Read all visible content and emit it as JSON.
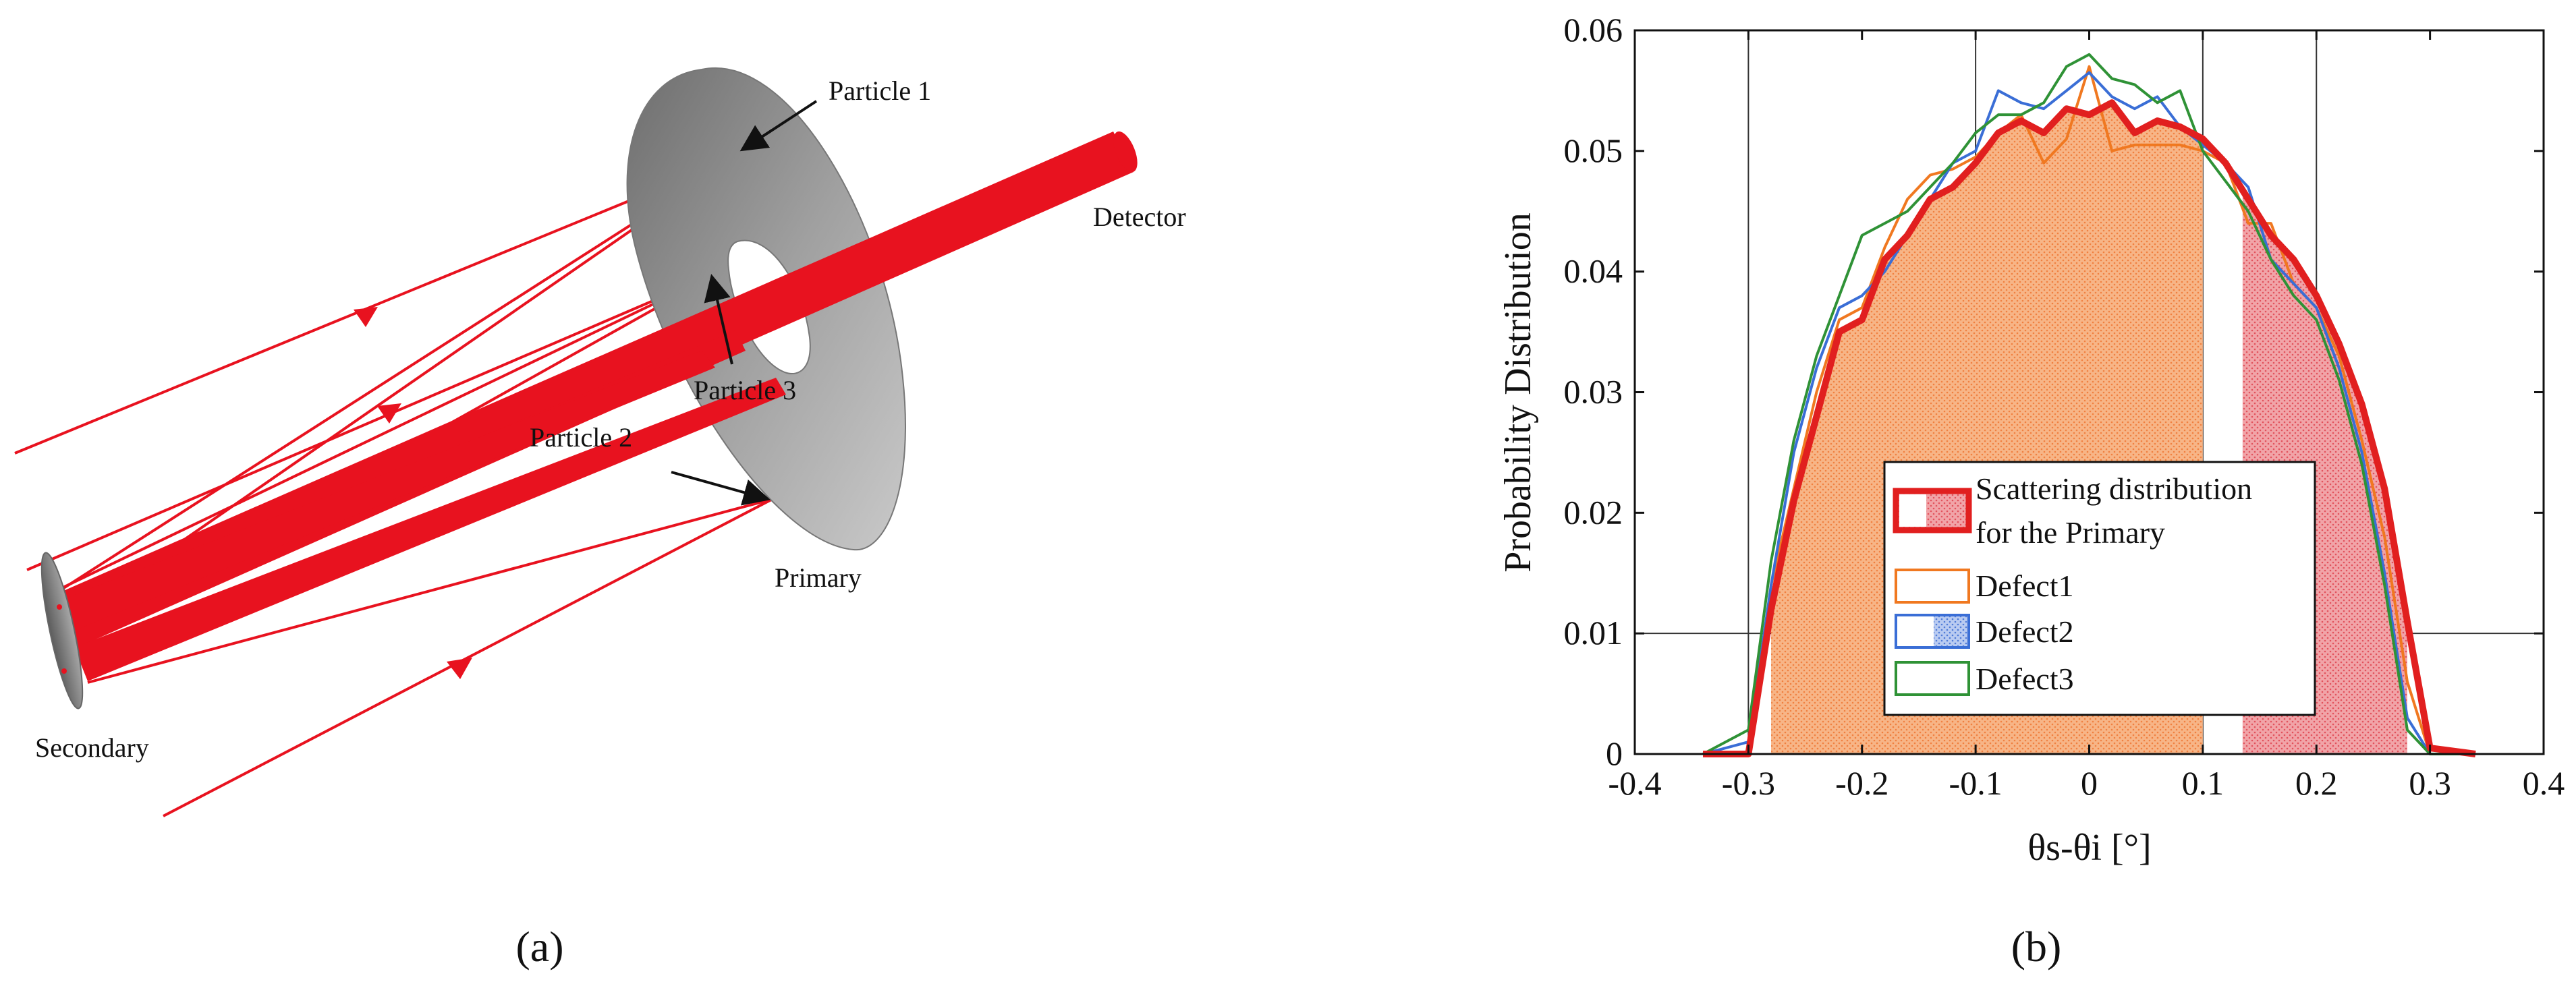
{
  "panel_a": {
    "label": "(a)",
    "labels": {
      "particle1": "Particle 1",
      "particle2": "Particle 2",
      "particle3": "Particle 3",
      "detector": "Detector",
      "primary": "Primary",
      "secondary": "Secondary"
    },
    "colors": {
      "ray": "#e8121f",
      "mirror": "#8a8a8a"
    }
  },
  "panel_b": {
    "label": "(b)",
    "xlabel": "θs-θi [°]",
    "ylabel": "Probability Distribution",
    "legend": {
      "entry0_line1": "Scattering distribution",
      "entry0_line2": "for the Primary",
      "entry1": "Defect1",
      "entry2": "Defect2",
      "entry3": "Defect3"
    }
  },
  "chart_data": {
    "type": "line",
    "xlim": [
      -0.4,
      0.4
    ],
    "ylim": [
      0,
      0.06
    ],
    "xticks": [
      "-0.4",
      "-0.3",
      "-0.2",
      "-0.1",
      "0",
      "0.1",
      "0.2",
      "0.3",
      "0.4"
    ],
    "yticks": [
      "0",
      "0.01",
      "0.02",
      "0.03",
      "0.04",
      "0.05",
      "0.06"
    ],
    "grid_x": [
      -0.3,
      -0.1,
      0.1,
      0.2
    ],
    "grid_y": [
      0.01
    ],
    "legend_position": "lower-center",
    "x": [
      -0.34,
      -0.3,
      -0.28,
      -0.26,
      -0.24,
      -0.22,
      -0.2,
      -0.18,
      -0.16,
      -0.14,
      -0.12,
      -0.1,
      -0.08,
      -0.06,
      -0.04,
      -0.02,
      0,
      0.02,
      0.04,
      0.06,
      0.08,
      0.1,
      0.12,
      0.14,
      0.16,
      0.18,
      0.2,
      0.22,
      0.24,
      0.26,
      0.28,
      0.3,
      0.34
    ],
    "series": [
      {
        "name": "Scattering distribution for the Primary",
        "color": "#e11f1f",
        "values": [
          0,
          0,
          0.012,
          0.021,
          0.028,
          0.035,
          0.036,
          0.041,
          0.043,
          0.046,
          0.047,
          0.049,
          0.0515,
          0.0525,
          0.0515,
          0.0535,
          0.053,
          0.054,
          0.0515,
          0.0525,
          0.052,
          0.051,
          0.049,
          0.046,
          0.043,
          0.041,
          0.038,
          0.034,
          0.029,
          0.022,
          0.011,
          0.0005,
          0
        ]
      },
      {
        "name": "Defect1",
        "color": "#f07820",
        "values": [
          0,
          0,
          0.014,
          0.022,
          0.03,
          0.036,
          0.037,
          0.042,
          0.046,
          0.048,
          0.0485,
          0.0495,
          0.0515,
          0.053,
          0.049,
          0.051,
          0.057,
          0.05,
          0.0505,
          0.0505,
          0.0505,
          0.05,
          0.049,
          0.044,
          0.044,
          0.039,
          0.037,
          0.033,
          0.026,
          0.018,
          0.006,
          0,
          0
        ]
      },
      {
        "name": "Defect2",
        "color": "#3a6ed6",
        "values": [
          0,
          0.001,
          0.014,
          0.025,
          0.032,
          0.037,
          0.038,
          0.04,
          0.043,
          0.046,
          0.049,
          0.05,
          0.055,
          0.054,
          0.0535,
          0.055,
          0.0565,
          0.0545,
          0.0535,
          0.0545,
          0.052,
          0.0505,
          0.049,
          0.047,
          0.041,
          0.039,
          0.037,
          0.032,
          0.025,
          0.015,
          0.003,
          0,
          0
        ]
      },
      {
        "name": "Defect3",
        "color": "#2f9236",
        "values": [
          0,
          0.002,
          0.016,
          0.026,
          0.033,
          0.038,
          0.043,
          0.044,
          0.045,
          0.047,
          0.049,
          0.0515,
          0.053,
          0.053,
          0.054,
          0.057,
          0.058,
          0.056,
          0.0555,
          0.054,
          0.055,
          0.05,
          0.0475,
          0.045,
          0.041,
          0.038,
          0.036,
          0.031,
          0.024,
          0.014,
          0.002,
          0,
          0
        ]
      }
    ],
    "shaded_region_gap": [
      0.1,
      0.135
    ]
  }
}
